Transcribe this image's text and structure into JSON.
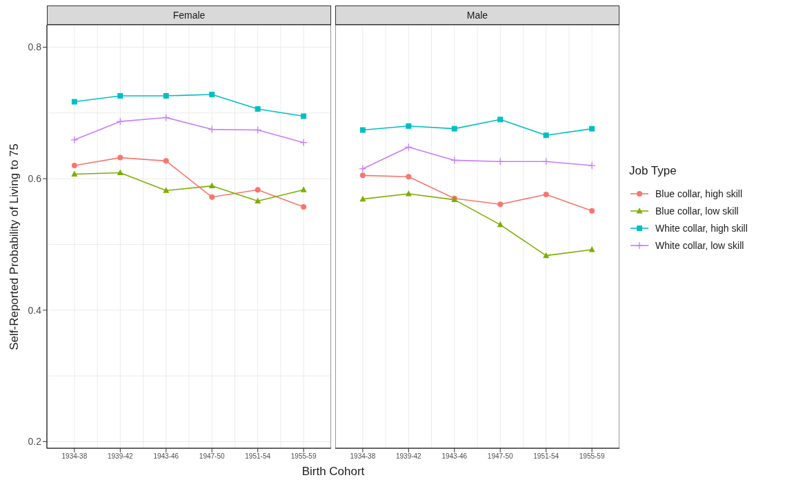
{
  "chart_data": [
    {
      "type": "line",
      "title": "Female",
      "ylabel": "Self-Reported Probability of Living to 75",
      "xlabel": "Birth Cohort",
      "categories": [
        "1934-38",
        "1939-42",
        "1943-46",
        "1947-50",
        "1951-54",
        "1955-59"
      ],
      "ylim": [
        0.19,
        0.834
      ],
      "yticks": [
        0.2,
        0.4,
        0.6,
        0.8
      ],
      "grid": true,
      "legend": false,
      "series": [
        {
          "color": "#f8766d",
          "marker": "circle",
          "values": [
            0.62,
            0.632,
            0.627,
            0.572,
            0.583,
            0.557
          ]
        },
        {
          "color": "#7cae00",
          "marker": "triangle",
          "values": [
            0.607,
            0.609,
            0.582,
            0.589,
            0.566,
            0.583
          ]
        },
        {
          "color": "#00bfc4",
          "marker": "square",
          "values": [
            0.717,
            0.726,
            0.726,
            0.728,
            0.706,
            0.695
          ]
        },
        {
          "color": "#c77cff",
          "marker": "cross",
          "values": [
            0.659,
            0.687,
            0.693,
            0.675,
            0.674,
            0.655
          ]
        }
      ]
    },
    {
      "type": "line",
      "title": "Male",
      "categories": [
        "1934-38",
        "1939-42",
        "1943-46",
        "1947-50",
        "1951-54",
        "1955-59"
      ],
      "ylim": [
        0.19,
        0.834
      ],
      "yticks": [
        0.2,
        0.4,
        0.6,
        0.8
      ],
      "tick_labels": "x",
      "grid": true,
      "legend": "right",
      "legend_title": "Job Type",
      "series": [
        {
          "name": "Blue collar, high skill",
          "color": "#f8766d",
          "marker": "circle",
          "values": [
            0.605,
            0.603,
            0.57,
            0.561,
            0.576,
            0.551
          ]
        },
        {
          "name": "Blue collar, low skill",
          "color": "#7cae00",
          "marker": "triangle",
          "values": [
            0.569,
            0.577,
            0.568,
            0.53,
            0.483,
            0.492
          ]
        },
        {
          "name": "White collar, high skill",
          "color": "#00bfc4",
          "marker": "square",
          "values": [
            0.674,
            0.68,
            0.676,
            0.69,
            0.666,
            0.676
          ]
        },
        {
          "name": "White collar, low skill",
          "color": "#c77cff",
          "marker": "cross",
          "values": [
            0.615,
            0.648,
            0.628,
            0.626,
            0.626,
            0.62
          ]
        }
      ]
    }
  ]
}
